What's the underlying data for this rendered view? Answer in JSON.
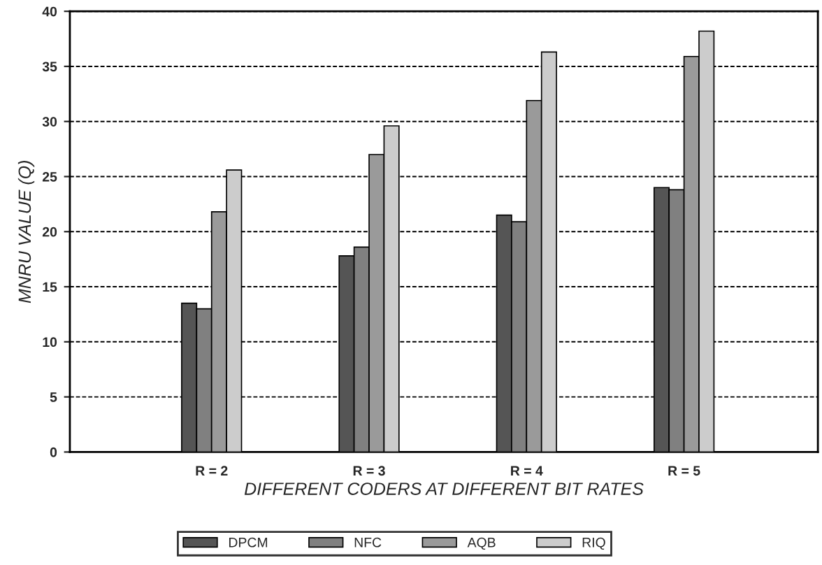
{
  "chart_data": {
    "type": "bar",
    "xlabel": "DIFFERENT CODERS AT DIFFERENT BIT RATES",
    "ylabel": "MNRU VALUE (Q)",
    "categories": [
      "R = 2",
      "R = 3",
      "R = 4",
      "R = 5"
    ],
    "series": [
      {
        "name": "DPCM",
        "color": "#555555",
        "values": [
          13.5,
          17.8,
          21.5,
          24
        ]
      },
      {
        "name": "NFC",
        "color": "#808080",
        "values": [
          13,
          18.6,
          20.9,
          23.8
        ]
      },
      {
        "name": "AQB",
        "color": "#9a9a9a",
        "values": [
          21.8,
          27,
          31.9,
          35.9
        ]
      },
      {
        "name": "RIQ",
        "color": "#cccccc",
        "values": [
          25.6,
          29.6,
          36.3,
          38.2
        ]
      }
    ],
    "ylim": [
      0,
      40
    ],
    "yticks": [
      0,
      5,
      10,
      15,
      20,
      25,
      30,
      35,
      40
    ],
    "grid": "y",
    "legend": "bottom"
  }
}
